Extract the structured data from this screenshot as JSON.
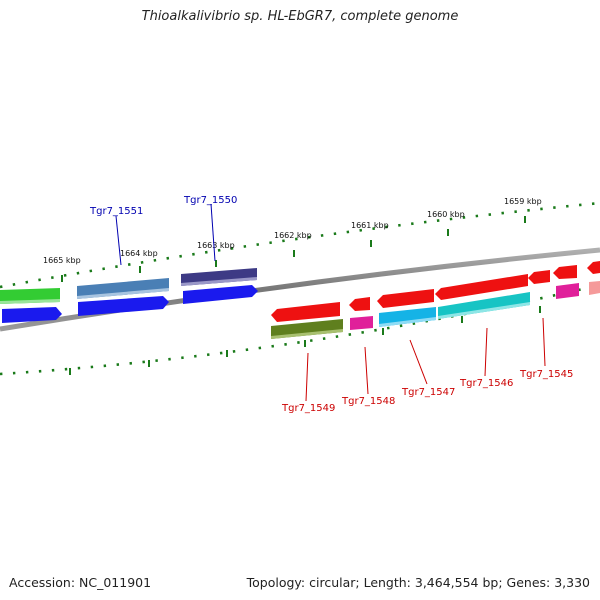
{
  "title": "Thioalkalivibrio sp. HL-EbGR7, complete genome",
  "footer": {
    "accession": "Accession: NC_011901",
    "summary": "Topology: circular; Length: 3,464,554 bp; Genes: 3,330"
  },
  "ruler": {
    "labels": [
      "1665 kbp",
      "1664 kbp",
      "1663 kbp",
      "1662 kbp",
      "1661 kbp",
      "1660 kbp",
      "1659 kbp"
    ]
  },
  "genes": {
    "forward": [
      {
        "name": "Tgr7_1551",
        "color": "#4a7fb5"
      },
      {
        "name": "Tgr7_1550",
        "color": "#3d3a85"
      }
    ],
    "reverse": [
      {
        "name": "Tgr7_1549",
        "color": "#5f7f1e"
      },
      {
        "name": "Tgr7_1548",
        "color": "#e0209a"
      },
      {
        "name": "Tgr7_1547",
        "color": "#15b3e6"
      },
      {
        "name": "Tgr7_1546",
        "color": "#17c4c4"
      },
      {
        "name": "Tgr7_1545",
        "color": "#e0209a"
      }
    ]
  },
  "colors": {
    "forward_label": "#0000b0",
    "reverse_label": "#cc0000",
    "cds_blue": "#1a1aee",
    "cds_red": "#ee1111",
    "green_track": "#33cc33",
    "ruler_tick": "#1a7a1a",
    "backbone": "#888888"
  }
}
